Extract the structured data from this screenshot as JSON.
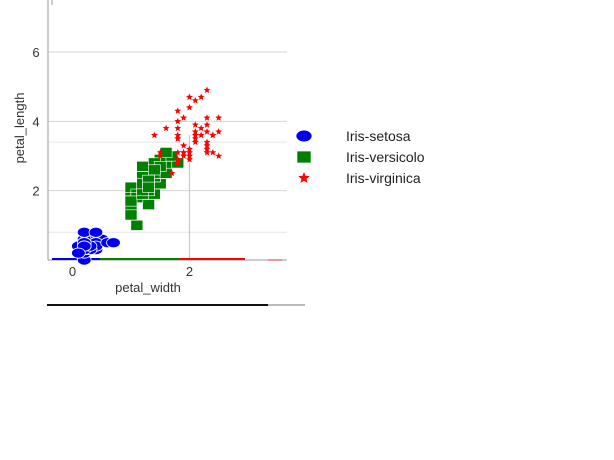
{
  "chart_data": {
    "type": "scatter",
    "xlabel": "petal_width",
    "ylabel": "petal_length",
    "x_ticks": [
      0,
      2
    ],
    "y_ticks": [
      2,
      4,
      6
    ],
    "xlim": [
      -0.3,
      3.6
    ],
    "ylim": [
      0,
      7.5
    ],
    "grid": true,
    "legend_position": "right",
    "series": [
      {
        "name": "Iris-setosa",
        "color": "#0000ee",
        "marker": "circle",
        "points": [
          [
            0.1,
            0.4
          ],
          [
            0.2,
            0.4
          ],
          [
            0.2,
            0.4
          ],
          [
            0.2,
            0.4
          ],
          [
            0.2,
            0.4
          ],
          [
            0.2,
            0.6
          ],
          [
            0.3,
            0.4
          ],
          [
            0.2,
            0.4
          ],
          [
            0.2,
            0.4
          ],
          [
            0.1,
            0.4
          ],
          [
            0.2,
            0.4
          ],
          [
            0.2,
            0.5
          ],
          [
            0.1,
            0.4
          ],
          [
            0.1,
            0.2
          ],
          [
            0.2,
            0.2
          ],
          [
            0.4,
            0.4
          ],
          [
            0.4,
            0.3
          ],
          [
            0.3,
            0.4
          ],
          [
            0.3,
            0.6
          ],
          [
            0.3,
            0.4
          ],
          [
            0.2,
            0.6
          ],
          [
            0.4,
            0.4
          ],
          [
            0.2,
            0.0
          ],
          [
            0.5,
            0.6
          ],
          [
            0.2,
            0.8
          ],
          [
            0.2,
            0.5
          ],
          [
            0.4,
            0.5
          ],
          [
            0.2,
            0.4
          ],
          [
            0.2,
            0.4
          ],
          [
            0.2,
            0.5
          ],
          [
            0.2,
            0.5
          ],
          [
            0.4,
            0.4
          ],
          [
            0.1,
            0.4
          ],
          [
            0.2,
            0.3
          ],
          [
            0.1,
            0.4
          ],
          [
            0.2,
            0.2
          ],
          [
            0.2,
            0.3
          ],
          [
            0.1,
            0.4
          ],
          [
            0.2,
            0.3
          ],
          [
            0.2,
            0.4
          ],
          [
            0.3,
            0.3
          ],
          [
            0.3,
            0.3
          ],
          [
            0.2,
            0.3
          ],
          [
            0.6,
            0.5
          ],
          [
            0.4,
            0.8
          ],
          [
            0.3,
            0.4
          ],
          [
            0.2,
            0.5
          ],
          [
            0.2,
            0.4
          ],
          [
            0.2,
            0.4
          ],
          [
            0.2,
            0.4
          ],
          [
            0.7,
            0.5
          ],
          [
            0.1,
            0.2
          ]
        ]
      },
      {
        "name": "Iris-versicolo",
        "color": "#008000",
        "marker": "square",
        "points": [
          [
            1.4,
            2.7
          ],
          [
            1.5,
            2.5
          ],
          [
            1.5,
            2.9
          ],
          [
            1.3,
            2.0
          ],
          [
            1.5,
            2.6
          ],
          [
            1.3,
            2.5
          ],
          [
            1.6,
            2.7
          ],
          [
            1.0,
            1.3
          ],
          [
            1.3,
            2.6
          ],
          [
            1.4,
            1.9
          ],
          [
            1.0,
            1.5
          ],
          [
            1.5,
            2.2
          ],
          [
            1.0,
            2.0
          ],
          [
            1.4,
            2.7
          ],
          [
            1.3,
            1.6
          ],
          [
            1.4,
            2.4
          ],
          [
            1.5,
            2.5
          ],
          [
            1.0,
            2.1
          ],
          [
            1.5,
            2.5
          ],
          [
            1.1,
            1.9
          ],
          [
            1.8,
            2.8
          ],
          [
            1.3,
            2.0
          ],
          [
            1.5,
            2.9
          ],
          [
            1.2,
            2.7
          ],
          [
            1.3,
            2.3
          ],
          [
            1.4,
            2.4
          ],
          [
            1.4,
            2.8
          ],
          [
            1.7,
            3.0
          ],
          [
            1.5,
            2.5
          ],
          [
            1.0,
            1.5
          ],
          [
            1.1,
            1.8
          ],
          [
            1.0,
            1.7
          ],
          [
            1.2,
            1.9
          ],
          [
            1.6,
            3.1
          ],
          [
            1.5,
            2.5
          ],
          [
            1.6,
            2.5
          ],
          [
            1.5,
            2.7
          ],
          [
            1.3,
            2.4
          ],
          [
            1.3,
            2.1
          ],
          [
            1.3,
            2.0
          ],
          [
            1.2,
            2.4
          ],
          [
            1.4,
            2.6
          ],
          [
            1.2,
            2.0
          ],
          [
            1.0,
            1.3
          ],
          [
            1.3,
            2.2
          ],
          [
            1.2,
            2.2
          ],
          [
            1.3,
            2.2
          ],
          [
            1.3,
            2.3
          ],
          [
            1.1,
            1.0
          ],
          [
            1.3,
            2.1
          ]
        ]
      },
      {
        "name": "Iris-virginica",
        "color": "#ff0000",
        "marker": "star",
        "points": [
          [
            2.5,
            3.0
          ],
          [
            1.9,
            3.1
          ],
          [
            2.1,
            3.9
          ],
          [
            1.8,
            3.6
          ],
          [
            2.2,
            3.8
          ],
          [
            2.1,
            4.6
          ],
          [
            1.7,
            2.5
          ],
          [
            1.8,
            4.3
          ],
          [
            1.8,
            3.8
          ],
          [
            2.5,
            4.1
          ],
          [
            2.0,
            3.1
          ],
          [
            1.9,
            3.3
          ],
          [
            2.1,
            3.5
          ],
          [
            2.0,
            3.0
          ],
          [
            2.4,
            3.1
          ],
          [
            2.3,
            3.3
          ],
          [
            1.8,
            3.5
          ],
          [
            2.2,
            4.7
          ],
          [
            2.3,
            4.9
          ],
          [
            1.5,
            3.0
          ],
          [
            2.3,
            3.7
          ],
          [
            2.0,
            2.9
          ],
          [
            2.0,
            4.7
          ],
          [
            1.8,
            2.9
          ],
          [
            2.1,
            3.7
          ],
          [
            1.8,
            4.0
          ],
          [
            1.8,
            2.8
          ],
          [
            1.8,
            2.9
          ],
          [
            2.1,
            3.6
          ],
          [
            1.6,
            3.8
          ],
          [
            1.9,
            4.1
          ],
          [
            2.0,
            4.4
          ],
          [
            2.2,
            3.6
          ],
          [
            1.5,
            3.1
          ],
          [
            1.4,
            3.6
          ],
          [
            2.3,
            4.1
          ],
          [
            2.4,
            3.6
          ],
          [
            1.8,
            3.5
          ],
          [
            1.8,
            2.8
          ],
          [
            2.1,
            3.4
          ],
          [
            2.4,
            3.6
          ],
          [
            2.3,
            3.1
          ],
          [
            1.9,
            3.1
          ],
          [
            2.3,
            3.9
          ],
          [
            2.5,
            3.7
          ],
          [
            2.3,
            3.2
          ],
          [
            1.9,
            3.0
          ],
          [
            2.0,
            3.2
          ],
          [
            2.3,
            3.4
          ],
          [
            1.8,
            3.1
          ]
        ]
      }
    ]
  }
}
